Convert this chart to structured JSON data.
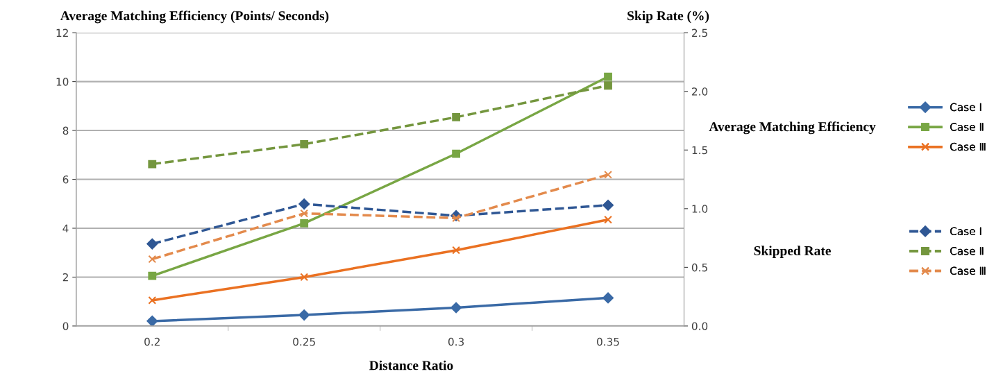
{
  "chart_data": {
    "type": "line",
    "xlabel": "Distance Ratio",
    "ylabel": "Average Matching Efficiency (Points/ Seconds)",
    "y2label": "Skip Rate (%)",
    "categories": [
      "0.2",
      "0.25",
      "0.3",
      "0.35"
    ],
    "series": [
      {
        "name": "Case Ⅰ",
        "color": "#3a6aa6",
        "marker": "diamond",
        "line_style": "solid",
        "values": [
          0.2,
          0.45,
          0.75,
          1.15
        ]
      },
      {
        "name": "Case Ⅱ",
        "color": "#78a644",
        "marker": "square",
        "line_style": "solid",
        "values": [
          2.05,
          4.2,
          7.05,
          10.2
        ]
      },
      {
        "name": "Case Ⅲ",
        "color": "#ea7122",
        "marker": "cross",
        "line_style": "solid",
        "values": [
          1.05,
          2.0,
          3.1,
          4.35
        ]
      },
      {
        "name": "Case Ⅰ",
        "color": "#2f5794",
        "marker": "diamond",
        "line_style": "dashed",
        "axis": "y2",
        "values": [
          0.7,
          1.04,
          0.94,
          1.03
        ]
      },
      {
        "name": "Case Ⅱ",
        "color": "#74963e",
        "marker": "square",
        "line_style": "dashed",
        "axis": "y2",
        "values": [
          1.38,
          1.55,
          1.78,
          2.05
        ]
      },
      {
        "name": "Case Ⅲ",
        "color": "#e38a4c",
        "marker": "cross",
        "line_style": "dashed",
        "axis": "y2",
        "values": [
          0.57,
          0.96,
          0.92,
          1.29
        ]
      }
    ],
    "ylim": [
      0,
      12
    ],
    "yticks": [
      0,
      2,
      4,
      6,
      8,
      10,
      12
    ],
    "y2lim": [
      0,
      2.5
    ],
    "y2ticks": [
      {
        "value": 0,
        "label": "0.0"
      },
      {
        "value": 0.5,
        "label": "0.5"
      },
      {
        "value": 1.0,
        "label": "1.0"
      },
      {
        "value": 1.5,
        "label": "1.5"
      },
      {
        "value": 2.0,
        "label": "2.0"
      },
      {
        "value": 2.5,
        "label": "2.5"
      }
    ],
    "grid": "y",
    "legend": "right",
    "annotations": [
      "Average Matching Efficiency",
      "Skipped Rate"
    ]
  }
}
